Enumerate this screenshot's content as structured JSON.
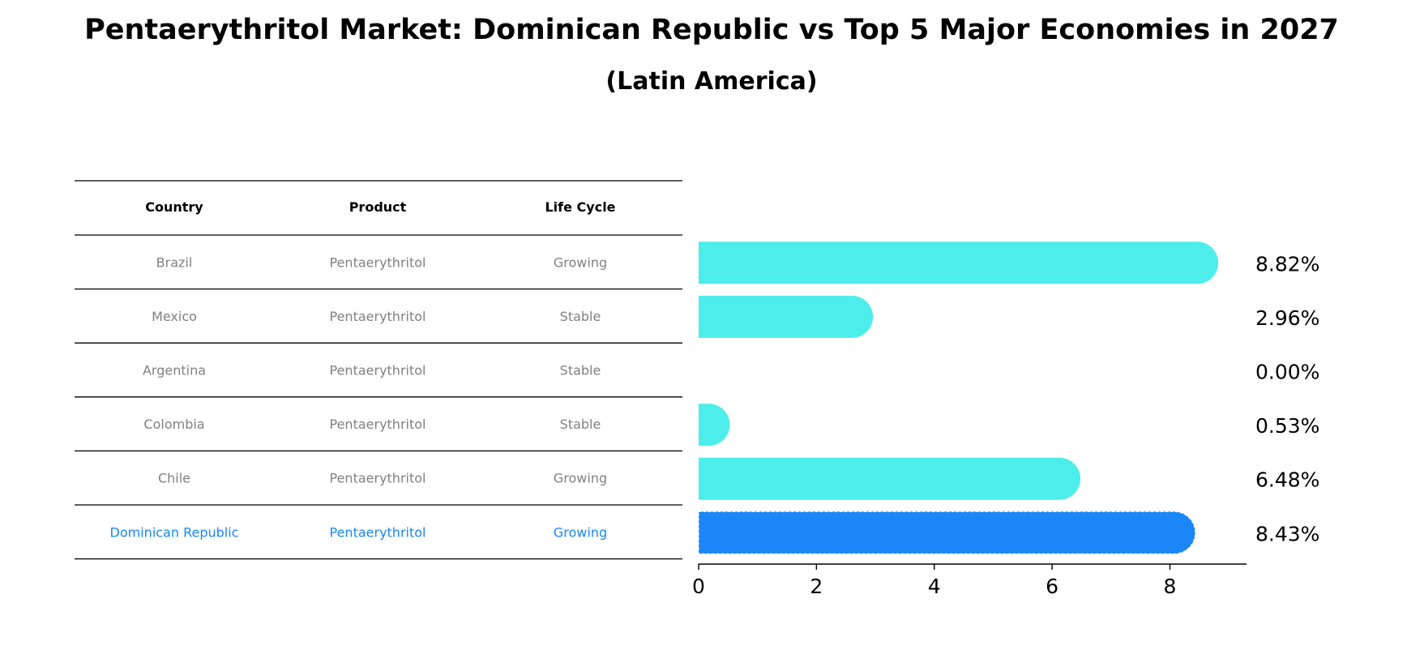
{
  "title": "Pentaerythritol Market: Dominican Republic vs Top 5 Major Economies in 2027",
  "subtitle": "(Latin America)",
  "colors": {
    "bar": "#4DEDEB",
    "highlight": "#1A86F7",
    "table_text": "#808080",
    "header_text": "#000000",
    "rule": "#000000"
  },
  "chart_data": {
    "type": "bar",
    "orientation": "horizontal",
    "title": "Pentaerythritol Market: Dominican Republic vs Top 5 Major Economies in 2027",
    "subtitle": "(Latin America)",
    "columns": [
      "Country",
      "Product",
      "Life Cycle"
    ],
    "rows": [
      {
        "country": "Brazil",
        "product": "Pentaerythritol",
        "life_cycle": "Growing",
        "value": 8.82,
        "label": "8.82%",
        "highlight": false
      },
      {
        "country": "Mexico",
        "product": "Pentaerythritol",
        "life_cycle": "Stable",
        "value": 2.96,
        "label": "2.96%",
        "highlight": false
      },
      {
        "country": "Argentina",
        "product": "Pentaerythritol",
        "life_cycle": "Stable",
        "value": 0.0,
        "label": "0.00%",
        "highlight": false
      },
      {
        "country": "Colombia",
        "product": "Pentaerythritol",
        "life_cycle": "Stable",
        "value": 0.53,
        "label": "0.53%",
        "highlight": false
      },
      {
        "country": "Chile",
        "product": "Pentaerythritol",
        "life_cycle": "Growing",
        "value": 6.48,
        "label": "6.48%",
        "highlight": false
      },
      {
        "country": "Dominican Republic",
        "product": "Pentaerythritol",
        "life_cycle": "Growing",
        "value": 8.43,
        "label": "8.43%",
        "highlight": true
      }
    ],
    "x_ticks": [
      0,
      2,
      4,
      6,
      8
    ],
    "xlim": [
      0,
      9.3
    ],
    "grid": false,
    "legend": "none"
  }
}
